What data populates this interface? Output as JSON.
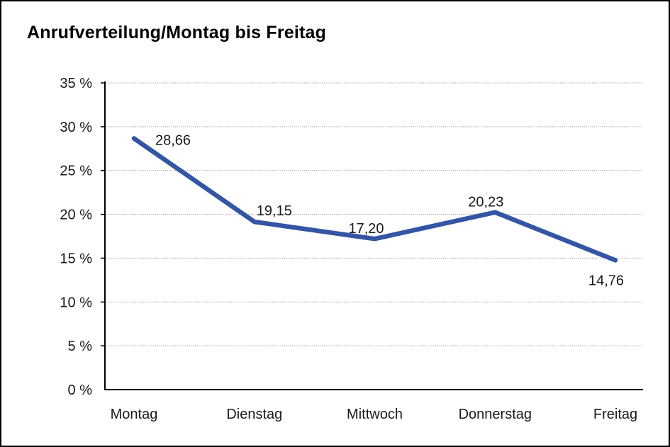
{
  "chart_data": {
    "type": "line",
    "title": "Anrufverteilung/Montag bis Freitag",
    "categories": [
      "Montag",
      "Dienstag",
      "Mittwoch",
      "Donnerstag",
      "Freitag"
    ],
    "series": [
      {
        "name": "Anrufverteilung",
        "values": [
          28.66,
          19.15,
          17.2,
          20.23,
          14.76
        ]
      }
    ],
    "value_labels": [
      "28,66",
      "19,15",
      "17,20",
      "20,23",
      "14,76"
    ],
    "y_ticks": [
      "35 %",
      "30 %",
      "25 %",
      "20 %",
      "15 %",
      "10 %",
      "5 %",
      "0 %"
    ],
    "ylim": [
      0,
      35
    ],
    "y_step": 5,
    "xlabel": "",
    "ylabel": "",
    "legend": "none",
    "grid": "horizontal-dotted",
    "line_color": "#3355a3",
    "number_format": "decimal-comma"
  }
}
